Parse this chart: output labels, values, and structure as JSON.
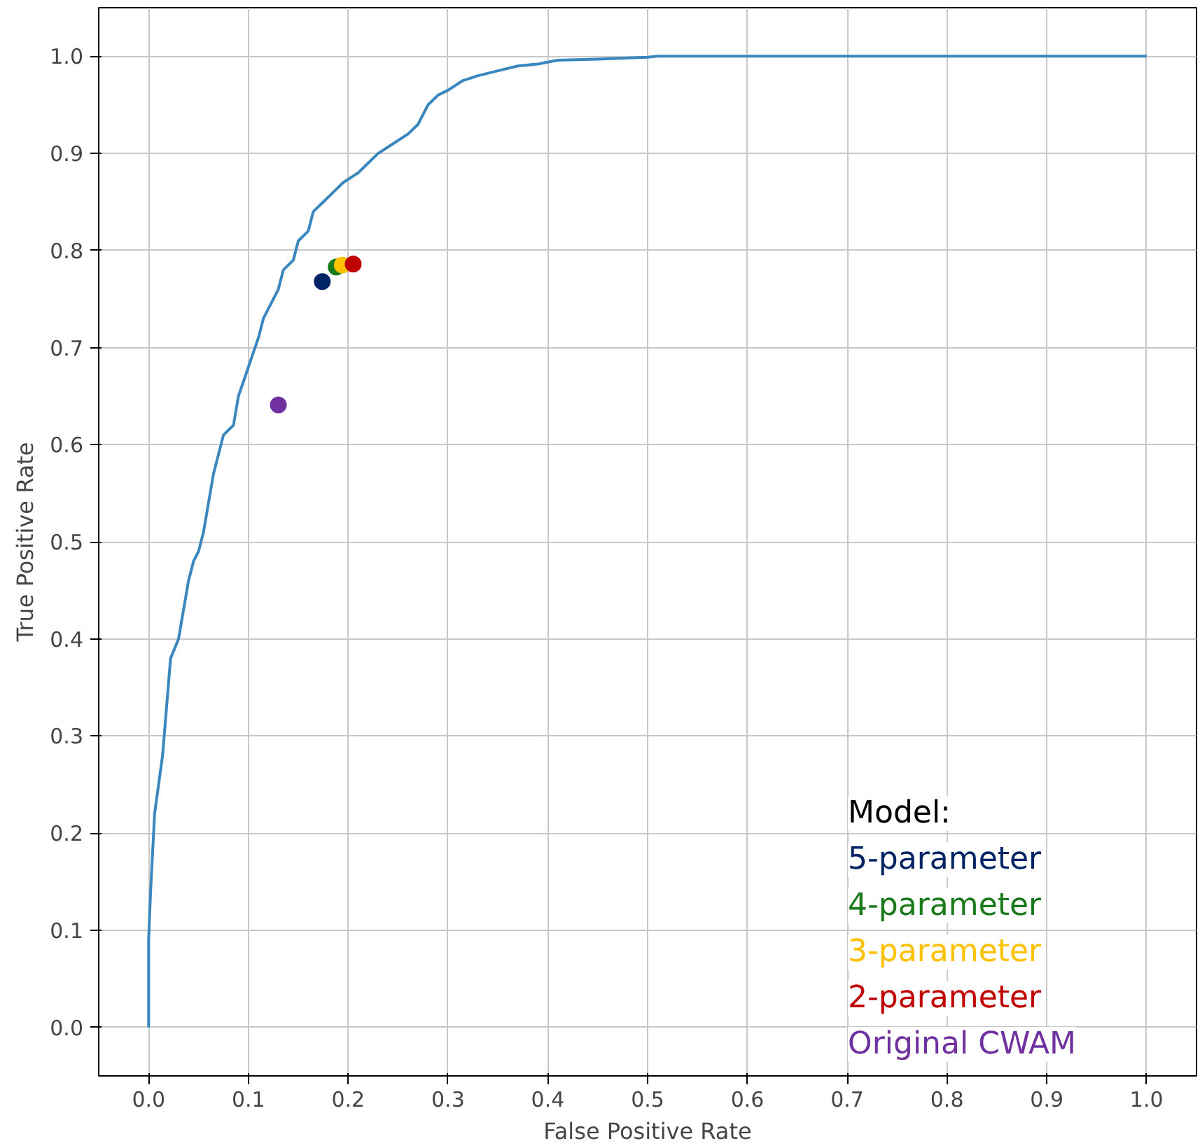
{
  "chart_data": {
    "type": "line",
    "xlabel": "False Positive Rate",
    "ylabel": "True Positive Rate",
    "legend_title": "Model:",
    "legend": "bottom right",
    "grid": true,
    "xlim": [
      -0.05,
      1.05
    ],
    "ylim": [
      -0.05,
      1.05
    ],
    "xticks": [
      {
        "value": 0,
        "label": "0.0"
      },
      0.1,
      0.2,
      0.3,
      0.4,
      0.5,
      0.6,
      0.7,
      0.8,
      0.9,
      {
        "value": 1,
        "label": "1.0"
      }
    ],
    "yticks": [
      {
        "value": 0,
        "label": "0.0"
      },
      0.1,
      0.2,
      0.3,
      0.4,
      0.5,
      0.6,
      0.7,
      0.8,
      0.9,
      {
        "value": 1,
        "label": "1.0"
      }
    ],
    "series": [
      {
        "color": "#3a87c0",
        "x": [
          0,
          0,
          0.002,
          0.004,
          0.006,
          0.01,
          0.014,
          0.018,
          0.022,
          0.03,
          0.035,
          0.04,
          0.045,
          0.05,
          0.055,
          0.06,
          0.065,
          0.07,
          0.075,
          0.085,
          0.09,
          0.1,
          0.11,
          0.115,
          0.12,
          0.13,
          0.135,
          0.145,
          0.15,
          0.16,
          0.165,
          0.175,
          0.185,
          0.195,
          0.21,
          0.22,
          0.23,
          0.245,
          0.26,
          0.27,
          0.28,
          0.29,
          0.3,
          0.315,
          0.33,
          0.35,
          0.37,
          0.39,
          0.41,
          0.45,
          0.5,
          0.51,
          1.0
        ],
        "values": [
          0,
          0.09,
          0.14,
          0.18,
          0.22,
          0.25,
          0.28,
          0.33,
          0.38,
          0.4,
          0.43,
          0.46,
          0.48,
          0.49,
          0.51,
          0.54,
          0.57,
          0.59,
          0.61,
          0.62,
          0.65,
          0.68,
          0.71,
          0.73,
          0.74,
          0.76,
          0.78,
          0.79,
          0.81,
          0.82,
          0.84,
          0.85,
          0.86,
          0.87,
          0.88,
          0.89,
          0.9,
          0.91,
          0.92,
          0.93,
          0.95,
          0.96,
          0.965,
          0.975,
          0.98,
          0.985,
          0.99,
          0.992,
          0.996,
          0.997,
          0.999,
          1.0,
          1.0
        ]
      },
      {
        "type": "scatter",
        "name": "5-parameter",
        "color": "#002366",
        "x": [
          0.174
        ],
        "values": [
          0.768
        ]
      },
      {
        "type": "scatter",
        "name": "4-parameter",
        "color": "#1a7a1a",
        "x": [
          0.188
        ],
        "values": [
          0.783
        ]
      },
      {
        "type": "scatter",
        "name": "3-parameter",
        "color": "#ffc000",
        "x": [
          0.194
        ],
        "values": [
          0.785
        ]
      },
      {
        "type": "scatter",
        "name": "2-parameter",
        "color": "#c00000",
        "x": [
          0.205
        ],
        "values": [
          0.786
        ]
      },
      {
        "type": "scatter",
        "name": "Original CWAM",
        "color": "#7030a0",
        "x": [
          0.13
        ],
        "values": [
          0.641
        ]
      }
    ]
  }
}
